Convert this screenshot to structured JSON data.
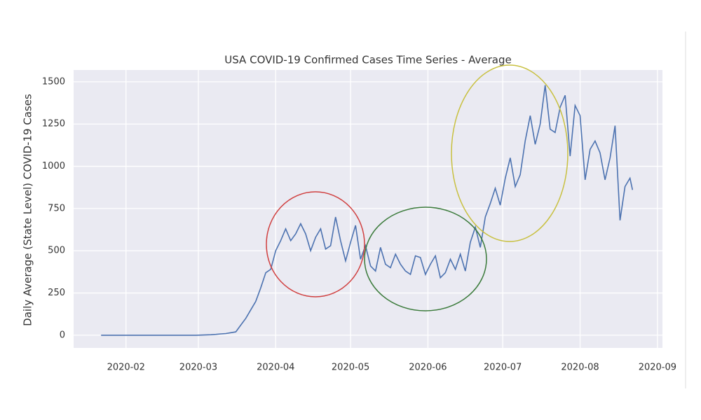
{
  "chart_data": {
    "type": "line",
    "title": "USA COVID-19 Confirmed Cases Time Series - Average",
    "y_label": "Daily Average (State Level) COVID-19 Cases",
    "color": "#4c72b0",
    "grid": true,
    "x": [
      "2020-01-22",
      "2020-01-24",
      "2020-01-26",
      "2020-01-28",
      "2020-01-30",
      "2020-02-01",
      "2020-02-03",
      "2020-02-05",
      "2020-02-07",
      "2020-02-09",
      "2020-02-11",
      "2020-02-13",
      "2020-02-15",
      "2020-02-17",
      "2020-02-19",
      "2020-02-21",
      "2020-02-23",
      "2020-02-25",
      "2020-02-27",
      "2020-02-29",
      "2020-03-02",
      "2020-03-04",
      "2020-03-06",
      "2020-03-08",
      "2020-03-10",
      "2020-03-12",
      "2020-03-14",
      "2020-03-16",
      "2020-03-18",
      "2020-03-20",
      "2020-03-22",
      "2020-03-24",
      "2020-03-26",
      "2020-03-28",
      "2020-03-30",
      "2020-04-01",
      "2020-04-03",
      "2020-04-05",
      "2020-04-07",
      "2020-04-09",
      "2020-04-11",
      "2020-04-13",
      "2020-04-15",
      "2020-04-17",
      "2020-04-19",
      "2020-04-21",
      "2020-04-23",
      "2020-04-25",
      "2020-04-27",
      "2020-04-29",
      "2020-05-01",
      "2020-05-03",
      "2020-05-05",
      "2020-05-07",
      "2020-05-09",
      "2020-05-11",
      "2020-05-13",
      "2020-05-15",
      "2020-05-17",
      "2020-05-19",
      "2020-05-21",
      "2020-05-23",
      "2020-05-25",
      "2020-05-27",
      "2020-05-29",
      "2020-05-31",
      "2020-06-02",
      "2020-06-04",
      "2020-06-06",
      "2020-06-08",
      "2020-06-10",
      "2020-06-12",
      "2020-06-14",
      "2020-06-16",
      "2020-06-18",
      "2020-06-20",
      "2020-06-22",
      "2020-06-24",
      "2020-06-26",
      "2020-06-28",
      "2020-06-30",
      "2020-07-02",
      "2020-07-04",
      "2020-07-06",
      "2020-07-08",
      "2020-07-10",
      "2020-07-12",
      "2020-07-14",
      "2020-07-16",
      "2020-07-18",
      "2020-07-20",
      "2020-07-22",
      "2020-07-24",
      "2020-07-26",
      "2020-07-28",
      "2020-07-30",
      "2020-08-01",
      "2020-08-03",
      "2020-08-05",
      "2020-08-07",
      "2020-08-09",
      "2020-08-11",
      "2020-08-13",
      "2020-08-15",
      "2020-08-17",
      "2020-08-19",
      "2020-08-21",
      "2020-08-22"
    ],
    "values": [
      0,
      0,
      0,
      0,
      0,
      0,
      0,
      0,
      0,
      0,
      0,
      0,
      0,
      0,
      0,
      0,
      0,
      0,
      0,
      0,
      1,
      2,
      3,
      5,
      8,
      10,
      15,
      20,
      60,
      100,
      150,
      200,
      280,
      370,
      390,
      500,
      560,
      630,
      560,
      600,
      660,
      600,
      500,
      580,
      630,
      510,
      530,
      700,
      560,
      440,
      550,
      650,
      450,
      530,
      410,
      380,
      520,
      420,
      400,
      480,
      420,
      380,
      360,
      470,
      460,
      360,
      420,
      470,
      340,
      370,
      450,
      390,
      480,
      380,
      550,
      640,
      520,
      700,
      780,
      870,
      770,
      930,
      1050,
      880,
      950,
      1150,
      1300,
      1130,
      1250,
      1480,
      1220,
      1200,
      1350,
      1420,
      1060,
      1360,
      1300,
      920,
      1100,
      1150,
      1080,
      920,
      1050,
      1240,
      680,
      880,
      930,
      860
    ],
    "xlim": [
      "2020-01-11",
      "2020-09-03"
    ],
    "xticks": [
      "2020-02",
      "2020-03",
      "2020-04",
      "2020-05",
      "2020-06",
      "2020-07",
      "2020-08",
      "2020-09"
    ],
    "ylim": [
      -75,
      1570
    ],
    "yticks": [
      0,
      250,
      500,
      750,
      1000,
      1250,
      1500
    ]
  }
}
